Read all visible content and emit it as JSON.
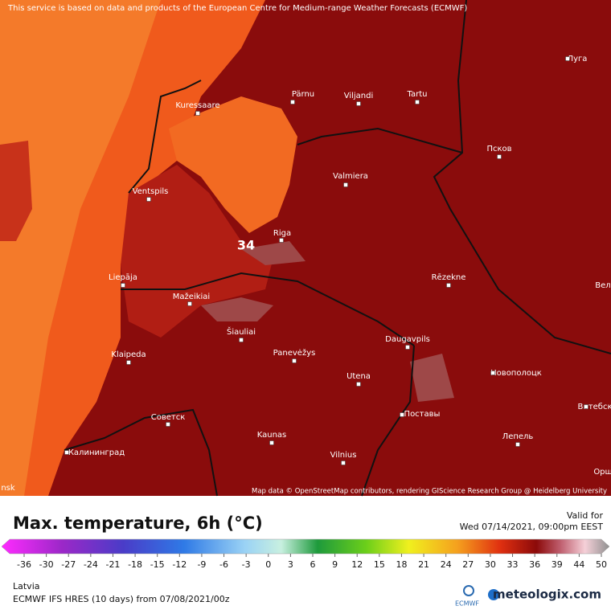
{
  "map": {
    "attribution_top": "This service is based on data and products of the European Centre for Medium-range Weather Forecasts (ECMWF)",
    "attribution_bottom": "Map data © OpenStreetMap contributors, rendering GIScience Research Group @ Heidelberg University",
    "cities": [
      "Kuressaare",
      "Pärnu",
      "Viljandi",
      "Tartu",
      "Луга",
      "Псков",
      "Valmiera",
      "Ventspils",
      "Riga",
      "Liepāja",
      "Rēzekne",
      "Вел",
      "Mažeikiai",
      "Šiauliai",
      "Panevėžys",
      "Klaipeda",
      "Daugavpils",
      "Utena",
      "Новополоцк",
      "Витебск",
      "Советск",
      "Поставы",
      "Kaunas",
      "Лепель",
      "Калининград",
      "Vilnius",
      "Орш",
      "nsk"
    ],
    "contour_label": "34"
  },
  "footer": {
    "title": "Max. temperature, 6h (°C)",
    "valid_label": "Valid for",
    "valid_time": "Wed 07/14/2021, 09:00pm EEST",
    "colorbar_ticks": [
      -36,
      -30,
      -27,
      -24,
      -21,
      -18,
      -15,
      -12,
      -9,
      -6,
      -3,
      0,
      3,
      6,
      9,
      12,
      15,
      18,
      21,
      24,
      27,
      30,
      33,
      36,
      39,
      44,
      50
    ],
    "region": "Latvia",
    "model": "ECMWF IFS HRES (10 days) from 07/08/2021/00z",
    "ecmwf_logo": "ECMWF",
    "brand": "meteologix.com"
  }
}
